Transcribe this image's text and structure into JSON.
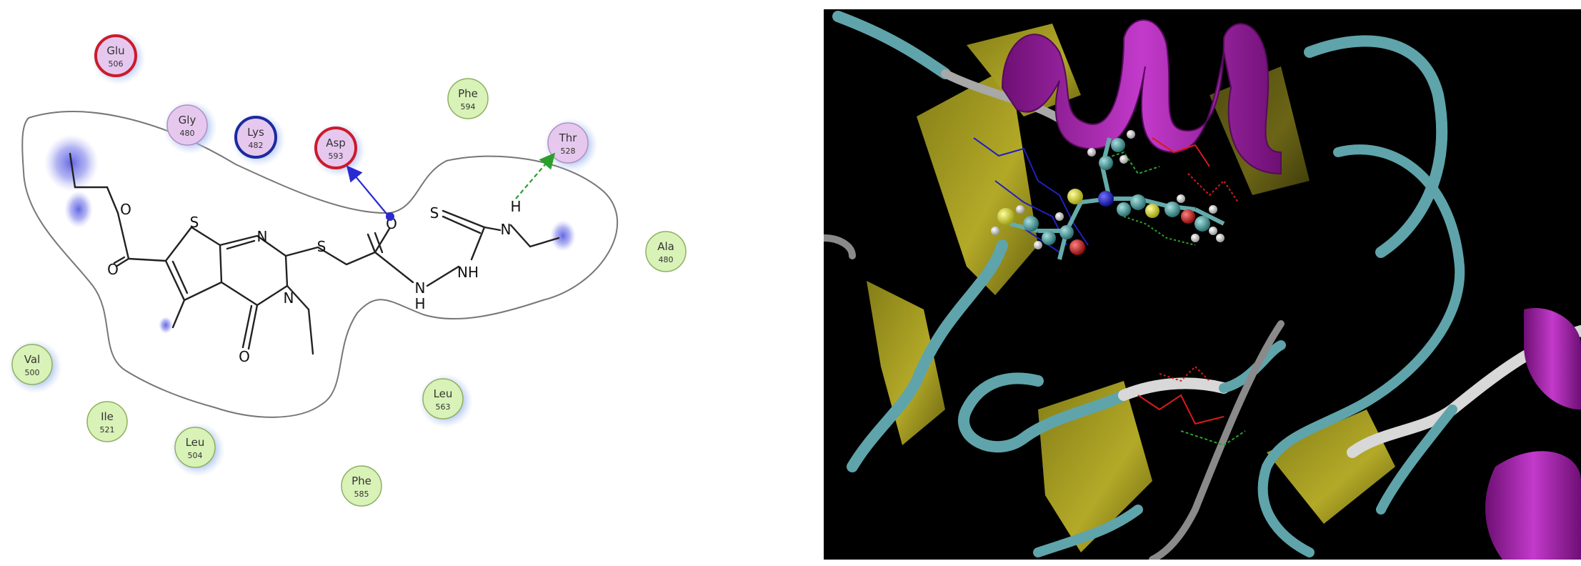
{
  "residues": [
    {
      "name": "Glu",
      "num": "506",
      "kind": "charged-acidic"
    },
    {
      "name": "Gly",
      "num": "480",
      "kind": "polar"
    },
    {
      "name": "Lys",
      "num": "482",
      "kind": "charged-basic"
    },
    {
      "name": "Asp",
      "num": "593",
      "kind": "charged-acidic"
    },
    {
      "name": "Phe",
      "num": "594",
      "kind": "hydrophobic"
    },
    {
      "name": "Thr",
      "num": "528",
      "kind": "polar"
    },
    {
      "name": "Ala",
      "num": "480",
      "kind": "hydrophobic"
    },
    {
      "name": "Val",
      "num": "500",
      "kind": "hydrophobic"
    },
    {
      "name": "Ile",
      "num": "521",
      "kind": "hydrophobic"
    },
    {
      "name": "Leu",
      "num": "504",
      "kind": "hydrophobic"
    },
    {
      "name": "Leu",
      "num": "563",
      "kind": "hydrophobic"
    },
    {
      "name": "Phe",
      "num": "585",
      "kind": "hydrophobic"
    }
  ],
  "atom_labels": {
    "o_ester": "O",
    "o_carbonyl_ester": "O",
    "s_thiophene": "S",
    "n_pyrimidine": "N",
    "s_thioether": "S",
    "o_amide": "O",
    "n_hydrazide": "N",
    "h_hydrazide": "H",
    "nh": "NH",
    "s_thiourea": "S",
    "n_thiourea": "N",
    "h_thiourea": "H",
    "o_pyrimidinone": "O",
    "n_pyrimidinone": "N"
  },
  "colors": {
    "hydrophobic": "#d9f2b8",
    "polar": "#e6c8ee",
    "acidic_ring": "#cc1a2a",
    "basic_ring": "#1a2aa0",
    "hbond_backbone": "#2a2ad0",
    "hbond_sidechain": "#2aa02a",
    "helix": "#a21ea8",
    "sheet": "#b7ac25",
    "coil": "#5fa4aa",
    "ligand_blue": "#2020c0",
    "ligand_carbon": "#3a8f8f",
    "ligand_sulfur": "#d8d82a",
    "ligand_oxygen": "#d81c1c"
  }
}
